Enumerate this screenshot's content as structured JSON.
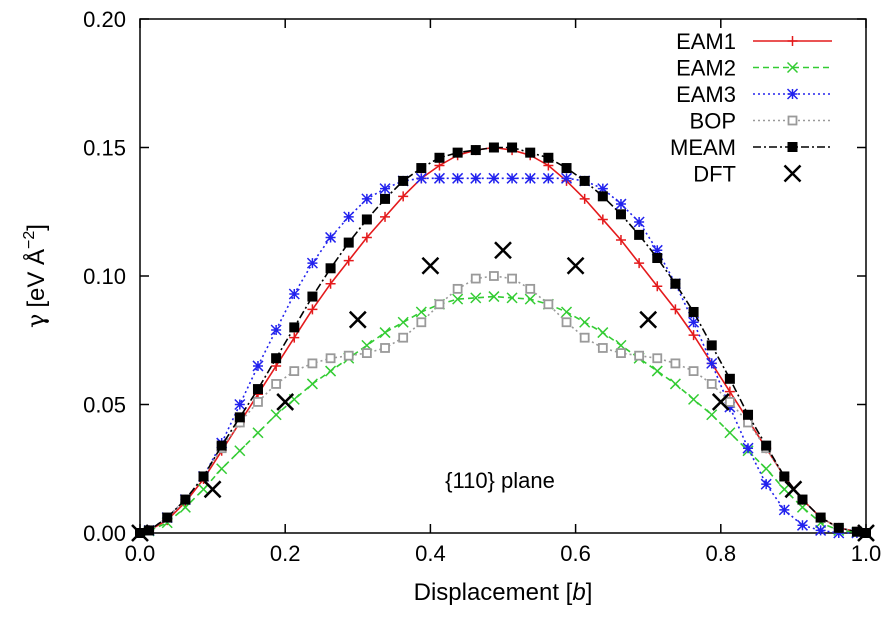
{
  "chart_data": {
    "type": "line",
    "title": "",
    "xlabel_main": "Displacement [",
    "xlabel_italic": "b",
    "xlabel_tail": "]",
    "ylabel_symbol": "γ",
    "ylabel_unit": "[eV Å",
    "ylabel_exp": "−2",
    "ylabel_close": "]",
    "annotation": "{110} plane",
    "xlim": [
      0.0,
      1.0
    ],
    "ylim": [
      0.0,
      0.2
    ],
    "xticks": [
      "0.0",
      "0.2",
      "0.4",
      "0.6",
      "0.8",
      "1.0"
    ],
    "yticks": [
      "0.00",
      "0.05",
      "0.10",
      "0.15",
      "0.20"
    ],
    "xtick_values": [
      0.0,
      0.2,
      0.4,
      0.6,
      0.8,
      1.0
    ],
    "ytick_values": [
      0.0,
      0.05,
      0.1,
      0.15,
      0.2
    ],
    "grid": false,
    "legend_position": "top-right",
    "colors": {
      "EAM1": "#e41a1c",
      "EAM2": "#33cc33",
      "EAM3": "#2222ee",
      "BOP": "#9a9a9a",
      "MEAM": "#000000",
      "DFT": "#000000"
    },
    "x": [
      0.0,
      0.0125,
      0.0375,
      0.0625,
      0.0875,
      0.1125,
      0.1375,
      0.1625,
      0.1875,
      0.2125,
      0.2375,
      0.2625,
      0.2875,
      0.3125,
      0.3375,
      0.3625,
      0.3875,
      0.4125,
      0.4375,
      0.4625,
      0.4875,
      0.5125,
      0.5375,
      0.5625,
      0.5875,
      0.6125,
      0.6375,
      0.6625,
      0.6875,
      0.7125,
      0.7375,
      0.7625,
      0.7875,
      0.8125,
      0.8375,
      0.8625,
      0.8875,
      0.9125,
      0.9375,
      0.9625,
      0.9875,
      1.0
    ],
    "series": [
      {
        "name": "EAM1",
        "style": "solid",
        "marker": "plus",
        "values": [
          0.0,
          0.001,
          0.005,
          0.012,
          0.021,
          0.032,
          0.043,
          0.054,
          0.065,
          0.076,
          0.087,
          0.097,
          0.106,
          0.115,
          0.123,
          0.131,
          0.138,
          0.143,
          0.147,
          0.149,
          0.15,
          0.149,
          0.147,
          0.143,
          0.137,
          0.13,
          0.122,
          0.114,
          0.105,
          0.096,
          0.087,
          0.077,
          0.066,
          0.055,
          0.044,
          0.033,
          0.022,
          0.013,
          0.006,
          0.002,
          0.0005,
          0.0
        ]
      },
      {
        "name": "EAM2",
        "style": "dashed",
        "marker": "x",
        "values": [
          0.0,
          0.0008,
          0.004,
          0.01,
          0.017,
          0.025,
          0.032,
          0.039,
          0.046,
          0.052,
          0.058,
          0.063,
          0.068,
          0.073,
          0.078,
          0.082,
          0.086,
          0.089,
          0.091,
          0.0915,
          0.092,
          0.0915,
          0.091,
          0.089,
          0.086,
          0.082,
          0.078,
          0.073,
          0.068,
          0.063,
          0.058,
          0.052,
          0.046,
          0.039,
          0.032,
          0.025,
          0.017,
          0.01,
          0.004,
          0.001,
          0.0003,
          0.0
        ]
      },
      {
        "name": "EAM3",
        "style": "dotted",
        "marker": "star",
        "values": [
          0.0,
          0.001,
          0.006,
          0.013,
          0.022,
          0.035,
          0.05,
          0.065,
          0.079,
          0.093,
          0.105,
          0.115,
          0.123,
          0.13,
          0.134,
          0.137,
          0.138,
          0.138,
          0.138,
          0.138,
          0.138,
          0.138,
          0.138,
          0.138,
          0.138,
          0.137,
          0.134,
          0.128,
          0.121,
          0.11,
          0.097,
          0.082,
          0.066,
          0.049,
          0.033,
          0.019,
          0.009,
          0.003,
          0.001,
          0.0,
          0.0,
          0.0
        ]
      },
      {
        "name": "BOP",
        "style": "dotted",
        "marker": "square-open",
        "values": [
          0.0,
          0.001,
          0.006,
          0.013,
          0.022,
          0.033,
          0.043,
          0.051,
          0.058,
          0.063,
          0.066,
          0.068,
          0.069,
          0.07,
          0.072,
          0.076,
          0.082,
          0.089,
          0.095,
          0.099,
          0.1,
          0.099,
          0.095,
          0.089,
          0.082,
          0.076,
          0.072,
          0.07,
          0.069,
          0.068,
          0.066,
          0.063,
          0.058,
          0.051,
          0.043,
          0.033,
          0.022,
          0.013,
          0.006,
          0.002,
          0.0005,
          0.0
        ]
      },
      {
        "name": "MEAM",
        "style": "dashdot",
        "marker": "square-filled",
        "values": [
          0.0,
          0.001,
          0.006,
          0.013,
          0.022,
          0.034,
          0.045,
          0.056,
          0.068,
          0.08,
          0.092,
          0.103,
          0.113,
          0.122,
          0.13,
          0.137,
          0.142,
          0.146,
          0.148,
          0.149,
          0.15,
          0.15,
          0.148,
          0.146,
          0.142,
          0.137,
          0.131,
          0.124,
          0.116,
          0.107,
          0.097,
          0.086,
          0.073,
          0.06,
          0.046,
          0.034,
          0.022,
          0.013,
          0.006,
          0.002,
          0.0005,
          0.0
        ]
      }
    ],
    "dft": {
      "name": "DFT",
      "marker": "cross",
      "x": [
        0.0,
        0.1,
        0.2,
        0.3,
        0.4,
        0.5,
        0.6,
        0.7,
        0.8,
        0.9,
        1.0
      ],
      "values": [
        0.0,
        0.017,
        0.051,
        0.083,
        0.104,
        0.11,
        0.104,
        0.083,
        0.051,
        0.017,
        0.0
      ]
    }
  }
}
